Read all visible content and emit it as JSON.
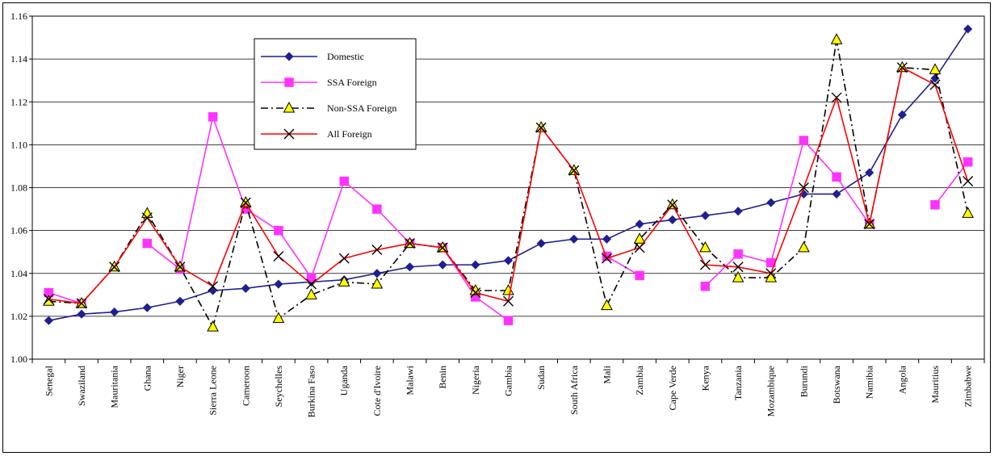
{
  "chart_data": {
    "type": "line",
    "title": "",
    "xlabel": "",
    "ylabel": "",
    "ylim": [
      1.0,
      1.16
    ],
    "ytick_step": 0.02,
    "grid": true,
    "legend_position": "top-left",
    "categories": [
      "Senegal",
      "Swaziland",
      "Mauritania",
      "Ghana",
      "Niger",
      "Sierra Leone",
      "Cameroon",
      "Seychelles",
      "Burkina Faso",
      "Uganda",
      "Cote d'Ivoire",
      "Malawi",
      "Benin",
      "Nigeria",
      "Gambia",
      "Sudan",
      "South Africa",
      "Mali",
      "Zambia",
      "Cape Verde",
      "Kenya",
      "Tanzania",
      "Mozambique",
      "Burundi",
      "Botswana",
      "Namibia",
      "Angola",
      "Mauritius",
      "Zimbabwe"
    ],
    "series": [
      {
        "name": "Domestic",
        "color": "#1f1f8f",
        "marker": "diamond",
        "marker_fill": "#1f1f8f",
        "dash": "solid",
        "values": [
          1.018,
          1.021,
          1.022,
          1.024,
          1.027,
          1.032,
          1.033,
          1.035,
          1.036,
          1.037,
          1.04,
          1.043,
          1.044,
          1.044,
          1.046,
          1.054,
          1.056,
          1.056,
          1.063,
          1.065,
          1.067,
          1.069,
          1.073,
          1.077,
          1.077,
          1.087,
          1.114,
          1.131,
          1.154
        ]
      },
      {
        "name": "SSA Foreign",
        "color": "#ff33ff",
        "marker": "square",
        "marker_fill": "#ff33ff",
        "dash": "solid",
        "values": [
          1.031,
          1.026,
          null,
          1.054,
          1.042,
          1.113,
          1.07,
          1.06,
          1.038,
          1.083,
          1.07,
          1.054,
          1.052,
          1.029,
          1.018,
          null,
          null,
          1.048,
          1.039,
          null,
          1.034,
          1.049,
          1.045,
          1.102,
          1.085,
          1.063,
          null,
          1.072,
          1.092
        ]
      },
      {
        "name": "Non-SSA Foreign",
        "color": "#000000",
        "marker": "triangle",
        "marker_fill": "#ffff00",
        "dash": "dashdot",
        "values": [
          1.027,
          1.026,
          1.043,
          1.068,
          1.043,
          1.015,
          1.073,
          1.019,
          1.03,
          1.036,
          1.035,
          1.054,
          1.052,
          1.032,
          1.032,
          1.108,
          1.088,
          1.025,
          1.056,
          1.072,
          1.052,
          1.038,
          1.038,
          1.052,
          1.149,
          1.063,
          1.136,
          1.135,
          1.068
        ]
      },
      {
        "name": "All Foreign",
        "color": "#ff0000",
        "marker": "x",
        "marker_fill": "#000000",
        "dash": "solid",
        "values": [
          1.028,
          1.026,
          1.043,
          1.066,
          1.043,
          1.034,
          1.073,
          1.048,
          1.035,
          1.047,
          1.051,
          1.054,
          1.052,
          1.031,
          1.027,
          1.108,
          1.088,
          1.047,
          1.052,
          1.072,
          1.044,
          1.043,
          1.04,
          1.08,
          1.122,
          1.063,
          1.136,
          1.128,
          1.083
        ]
      }
    ]
  }
}
